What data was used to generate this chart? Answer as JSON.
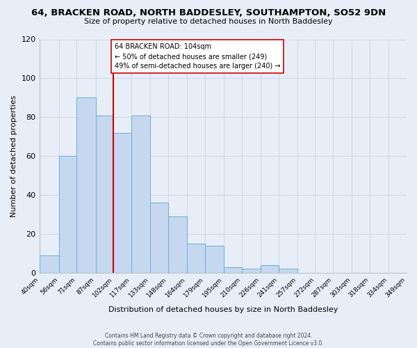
{
  "title": "64, BRACKEN ROAD, NORTH BADDESLEY, SOUTHAMPTON, SO52 9DN",
  "subtitle": "Size of property relative to detached houses in North Baddesley",
  "xlabel": "Distribution of detached houses by size in North Baddesley",
  "ylabel": "Number of detached properties",
  "bar_color": "#c5d8f0",
  "bar_edge_color": "#6baed6",
  "background_color": "#e8eef8",
  "grid_color": "#d0d8e8",
  "ylim": [
    0,
    120
  ],
  "yticks": [
    0,
    20,
    40,
    60,
    80,
    100,
    120
  ],
  "bin_edges": [
    40,
    56,
    71,
    87,
    102,
    117,
    133,
    148,
    164,
    179,
    195,
    210,
    226,
    241,
    257,
    272,
    287,
    303,
    318,
    334,
    349
  ],
  "bar_heights": [
    9,
    60,
    90,
    81,
    72,
    81,
    36,
    29,
    15,
    14,
    3,
    2,
    4,
    2,
    0,
    0,
    0,
    0,
    0,
    0
  ],
  "vline_x": 102,
  "vline_color": "#cc0000",
  "annotation_text": "64 BRACKEN ROAD: 104sqm\n← 50% of detached houses are smaller (249)\n49% of semi-detached houses are larger (240) →",
  "annotation_box_color": "#ffffff",
  "annotation_box_edge": "#cc0000",
  "footer_line1": "Contains HM Land Registry data © Crown copyright and database right 2024.",
  "footer_line2": "Contains public sector information licensed under the Open Government Licence v3.0.",
  "tick_labels": [
    "40sqm",
    "56sqm",
    "71sqm",
    "87sqm",
    "102sqm",
    "117sqm",
    "133sqm",
    "148sqm",
    "164sqm",
    "179sqm",
    "195sqm",
    "210sqm",
    "226sqm",
    "241sqm",
    "257sqm",
    "272sqm",
    "287sqm",
    "303sqm",
    "318sqm",
    "334sqm",
    "349sqm"
  ]
}
